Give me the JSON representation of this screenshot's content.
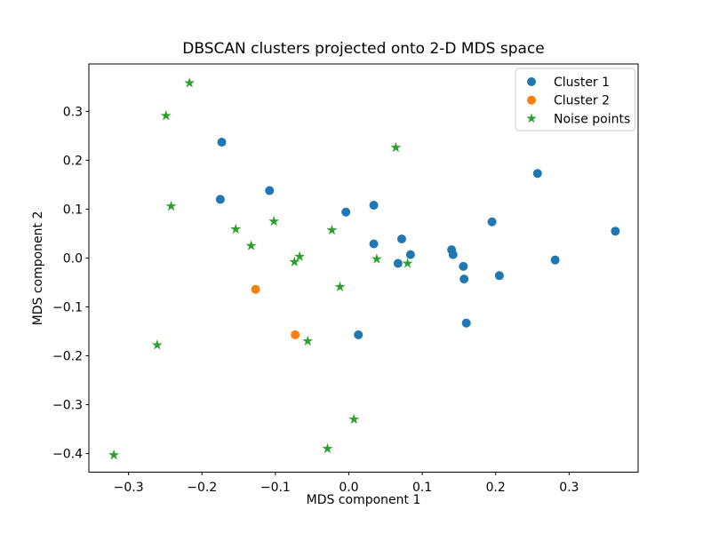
{
  "chart_data": {
    "type": "scatter",
    "title": "DBSCAN clusters projected onto 2-D MDS space",
    "xlabel": "MDS component 1",
    "ylabel": "MDS component 2",
    "xlim": [
      -0.354,
      0.394
    ],
    "ylim": [
      -0.438,
      0.397
    ],
    "xticks": [
      -0.3,
      -0.2,
      -0.1,
      0.0,
      0.1,
      0.2,
      0.3
    ],
    "yticks": [
      -0.4,
      -0.3,
      -0.2,
      -0.1,
      0.0,
      0.1,
      0.2,
      0.3
    ],
    "grid": false,
    "legend_position": "upper right",
    "background_color": "#ffffff",
    "spine_color": "#000000",
    "series": [
      {
        "name": "Cluster 1",
        "marker": "circle",
        "color": "#1f77b4",
        "points": [
          [
            -0.173,
            0.237
          ],
          [
            -0.175,
            0.12
          ],
          [
            -0.108,
            0.138
          ],
          [
            -0.004,
            0.094
          ],
          [
            0.034,
            0.108
          ],
          [
            0.257,
            0.173
          ],
          [
            0.195,
            0.074
          ],
          [
            0.363,
            0.055
          ],
          [
            0.072,
            0.039
          ],
          [
            0.034,
            0.029
          ],
          [
            0.14,
            0.017
          ],
          [
            0.142,
            0.007
          ],
          [
            0.084,
            0.007
          ],
          [
            0.067,
            -0.011
          ],
          [
            0.281,
            -0.004
          ],
          [
            0.156,
            -0.017
          ],
          [
            0.205,
            -0.036
          ],
          [
            0.157,
            -0.043
          ],
          [
            0.16,
            -0.133
          ],
          [
            0.013,
            -0.157
          ]
        ]
      },
      {
        "name": "Cluster 2",
        "marker": "circle",
        "color": "#ff7f0e",
        "points": [
          [
            -0.127,
            -0.064
          ],
          [
            -0.073,
            -0.157
          ]
        ]
      },
      {
        "name": "Noise points",
        "marker": "star",
        "color": "#2ca02c",
        "points": [
          [
            -0.217,
            0.358
          ],
          [
            -0.249,
            0.291
          ],
          [
            -0.242,
            0.106
          ],
          [
            -0.154,
            0.059
          ],
          [
            -0.133,
            0.025
          ],
          [
            -0.102,
            0.075
          ],
          [
            -0.067,
            0.003
          ],
          [
            -0.074,
            -0.008
          ],
          [
            -0.023,
            0.057
          ],
          [
            0.064,
            0.226
          ],
          [
            0.038,
            -0.002
          ],
          [
            0.08,
            -0.011
          ],
          [
            -0.012,
            -0.059
          ],
          [
            -0.261,
            -0.178
          ],
          [
            -0.056,
            -0.17
          ],
          [
            0.007,
            -0.33
          ],
          [
            -0.029,
            -0.39
          ],
          [
            -0.32,
            -0.403
          ]
        ]
      }
    ],
    "legend": {
      "face_color": "#ffffff",
      "edge_color": "#cccccc"
    }
  }
}
